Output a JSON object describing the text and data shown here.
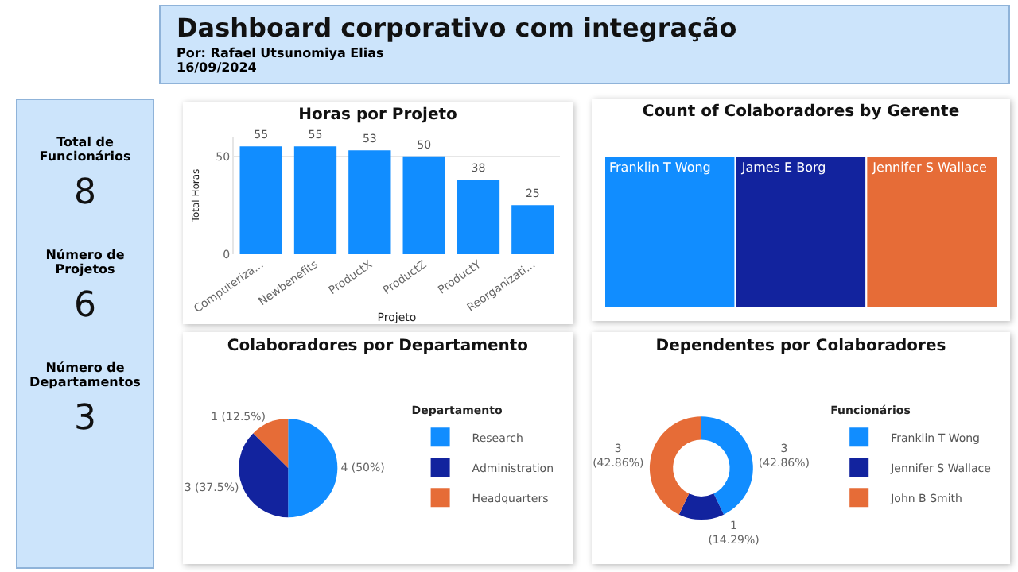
{
  "chart_data": [
    {
      "type": "other",
      "title": "Dashboard corporativo com integração",
      "subtitle": "Por: Rafael Utsunomiya Elias",
      "annotations": [
        "16/09/2024"
      ]
    },
    {
      "type": "other",
      "annotations": [
        "Total de Funcionários",
        "8",
        "Número de Projetos",
        "6",
        "Número de Departamentos",
        "3"
      ]
    },
    {
      "type": "bar",
      "title": "Horas por Projeto",
      "xlabel": "Projeto",
      "ylabel": "Total Horas",
      "categories": [
        "Computeriza...",
        "Newbenefits",
        "ProductX",
        "ProductZ",
        "ProductY",
        "Reorganizati..."
      ],
      "values": [
        55,
        55,
        53,
        50,
        38,
        25
      ],
      "color": "#118dff",
      "ylim": [
        0,
        60
      ],
      "yticks": [
        0,
        50
      ],
      "data_labels": true,
      "grid": "y"
    },
    {
      "type": "other",
      "title": "Count of Colaboradores by Gerente",
      "categories": [
        "Franklin T Wong",
        "James E Borg",
        "Jennifer S Wallace"
      ],
      "colors": [
        "#118dff",
        "#12239e",
        "#e66c37"
      ]
    },
    {
      "type": "pie",
      "title": "Colaboradores por Departamento",
      "legend_title": "Departamento",
      "categories": [
        "Research",
        "Administration",
        "Headquarters"
      ],
      "values": [
        4,
        3,
        1
      ],
      "value_labels": [
        "4 (50%)",
        "3 (37.5%)",
        "1 (12.5%)"
      ],
      "colors": [
        "#118dff",
        "#12239e",
        "#e66c37"
      ],
      "legend": "right"
    },
    {
      "type": "donut",
      "title": "Dependentes por Colaboradores",
      "legend_title": "Funcionários",
      "categories": [
        "Franklin T Wong",
        "Jennifer S Wallace",
        "John B Smith"
      ],
      "values": [
        3,
        1,
        3
      ],
      "value_labels": [
        "3 (42.86%)",
        "1 (14.29%)",
        "3 (42.86%)"
      ],
      "colors": [
        "#118dff",
        "#12239e",
        "#e66c37"
      ],
      "legend": "right"
    }
  ]
}
